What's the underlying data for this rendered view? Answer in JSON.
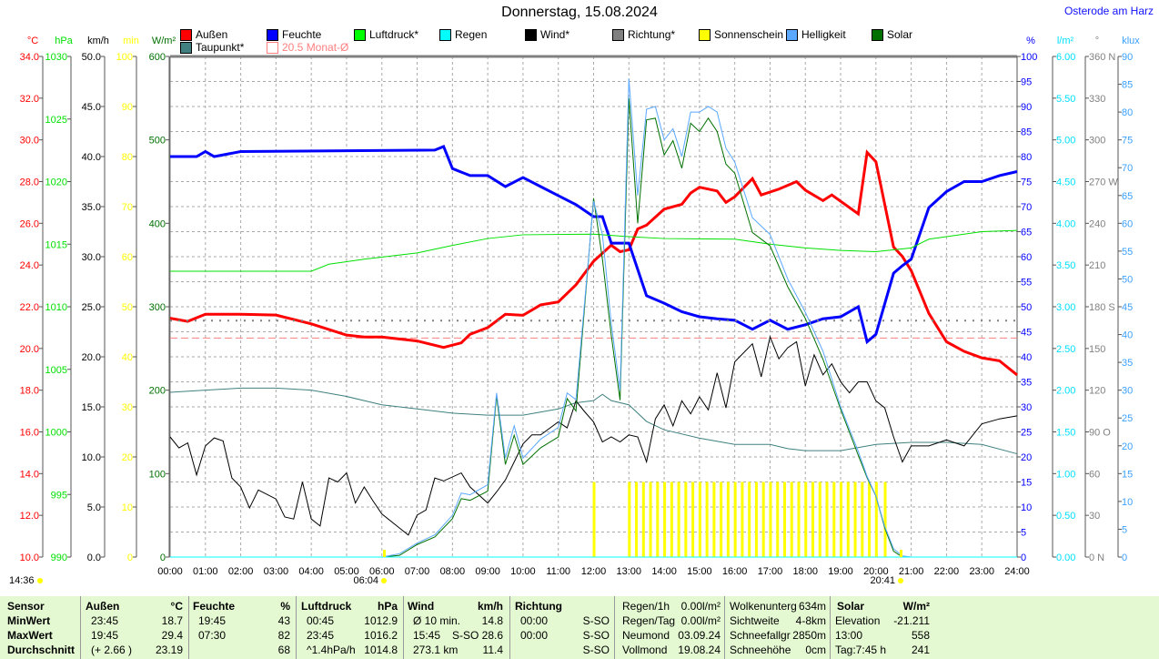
{
  "title": "Donnerstag, 15.08.2024",
  "location": "Osterode am Harz",
  "legend": [
    {
      "label": "Außen",
      "color": "#ff0000"
    },
    {
      "label": "Feuchte",
      "color": "#0000ff"
    },
    {
      "label": "Luftdruck*",
      "color": "#00ff00"
    },
    {
      "label": "Regen",
      "color": "#00ffff"
    },
    {
      "label": "Wind*",
      "color": "#000000"
    },
    {
      "label": "Richtung*",
      "color": "#808080"
    },
    {
      "label": "Sonnenschein",
      "color": "#ffff00"
    },
    {
      "label": "Helligkeit",
      "color": "#5aa8ff"
    },
    {
      "label": "Solar",
      "color": "#007000"
    },
    {
      "label": "Taupunkt*",
      "color": "#408080"
    },
    {
      "label": "20.5 Monat-Ø",
      "color": "#ff8080"
    }
  ],
  "time_marks": {
    "now": "14:36",
    "sunrise": "06:04",
    "sunset": "20:41"
  },
  "chart_data": {
    "type": "line",
    "title": "Donnerstag, 15.08.2024",
    "x_ticks": [
      "00:00",
      "01:00",
      "02:00",
      "03:00",
      "04:00",
      "05:00",
      "06:00",
      "07:00",
      "08:00",
      "09:00",
      "10:00",
      "11:00",
      "12:00",
      "13:00",
      "14:00",
      "15:00",
      "16:00",
      "17:00",
      "18:00",
      "19:00",
      "20:00",
      "21:00",
      "22:00",
      "23:00",
      "24:00"
    ],
    "xlim": [
      0,
      24
    ],
    "axes": {
      "temp": {
        "unit": "°C",
        "range": [
          10,
          34
        ],
        "step": 2,
        "color": "#ff0000"
      },
      "press": {
        "unit": "hPa",
        "range": [
          990,
          1030
        ],
        "step": 5,
        "color": "#00e000"
      },
      "wind": {
        "unit": "km/h",
        "range": [
          0,
          50
        ],
        "step": 5,
        "color": "#000000"
      },
      "sun": {
        "unit": "min",
        "range": [
          0,
          100
        ],
        "step": 10,
        "color": "#ffff00"
      },
      "solar": {
        "unit": "W/m²",
        "range": [
          0,
          600
        ],
        "step": 100,
        "color": "#007000"
      },
      "hum": {
        "unit": "%",
        "range": [
          0,
          100
        ],
        "step": 5,
        "color": "#0000ff"
      },
      "rain": {
        "unit": "l/m²",
        "range": [
          0,
          6
        ],
        "step": 0.5,
        "color": "#00e0ff"
      },
      "dir": {
        "unit": "°",
        "range": [
          0,
          360
        ],
        "step": 30,
        "color": "#808080",
        "compass": {
          "0": "N",
          "90": "O",
          "180": "S",
          "270": "W",
          "360": "N"
        }
      },
      "lux": {
        "unit": "klux",
        "range": [
          0,
          90
        ],
        "step": 5,
        "color": "#3aa0ff"
      }
    },
    "monthly_avg_temp": 20.5,
    "series": [
      {
        "name": "Außen",
        "axis": "temp",
        "color": "#ff0000",
        "width": 3,
        "x": [
          0,
          0.5,
          1,
          2,
          3,
          4,
          5,
          5.5,
          6,
          7,
          7.75,
          8.25,
          8.5,
          9,
          9.5,
          10,
          10.5,
          11,
          11.5,
          12,
          12.5,
          12.75,
          13,
          13.25,
          13.5,
          14,
          14.5,
          14.75,
          15,
          15.5,
          15.75,
          16,
          16.5,
          16.75,
          17.25,
          17.75,
          18,
          18.5,
          18.75,
          19.5,
          19.75,
          20,
          20.5,
          20.75,
          21,
          21.5,
          22,
          22.5,
          23,
          23.5,
          24
        ],
        "y": [
          21.45,
          21.3,
          21.64,
          21.64,
          21.6,
          21.18,
          20.64,
          20.55,
          20.55,
          20.36,
          20.05,
          20.27,
          20.68,
          21.0,
          21.64,
          21.59,
          22.09,
          22.23,
          23.05,
          24.18,
          24.95,
          24.64,
          24.73,
          25.73,
          25.91,
          26.68,
          26.91,
          27.45,
          27.73,
          27.55,
          27.0,
          27.27,
          28.14,
          27.36,
          27.64,
          28.0,
          27.59,
          27.09,
          27.36,
          26.45,
          29.4,
          28.95,
          24.86,
          24.41,
          23.73,
          21.68,
          20.32,
          19.86,
          19.55,
          19.41,
          18.73
        ]
      },
      {
        "name": "Feuchte",
        "axis": "hum",
        "color": "#0000ff",
        "width": 3,
        "x": [
          0,
          0.75,
          1,
          1.25,
          2,
          7.5,
          7.75,
          8,
          8.5,
          9,
          9.5,
          10,
          10.5,
          11,
          11.5,
          12,
          12.25,
          12.5,
          13,
          13.5,
          14,
          14.5,
          15,
          15.5,
          16,
          16.5,
          17,
          17.5,
          18,
          18.5,
          19,
          19.5,
          19.75,
          20,
          20.5,
          20.75,
          21,
          21.5,
          22,
          22.5,
          23,
          23.5,
          24
        ],
        "y": [
          80,
          80,
          81,
          80,
          81,
          81.3,
          82,
          77.6,
          76.2,
          76.2,
          74,
          75.8,
          74,
          72.2,
          70.4,
          68,
          68,
          62.7,
          62.7,
          52.2,
          50.7,
          49,
          48,
          47.6,
          47.3,
          45.5,
          47.3,
          45.5,
          46.4,
          47.6,
          48,
          50,
          43,
          44.5,
          56.7,
          58.2,
          59.5,
          69.8,
          73,
          75,
          75,
          76.2,
          77
        ]
      },
      {
        "name": "Luftdruck*",
        "axis": "press",
        "color": "#00e000",
        "width": 1,
        "x": [
          0,
          1,
          2,
          3,
          4,
          4.5,
          5.5,
          7,
          8,
          9,
          10,
          12,
          13,
          14,
          16,
          17,
          18,
          19,
          20,
          21,
          21.5,
          22,
          23,
          24
        ],
        "y": [
          1012.84,
          1012.84,
          1012.84,
          1012.84,
          1012.84,
          1013.4,
          1013.8,
          1014.3,
          1014.9,
          1015.45,
          1015.75,
          1015.8,
          1015.6,
          1015.45,
          1015.4,
          1015.0,
          1014.7,
          1014.5,
          1014.4,
          1014.7,
          1015.4,
          1015.6,
          1016.0,
          1016.1
        ]
      },
      {
        "name": "Taupunkt*",
        "axis": "temp",
        "color": "#408080",
        "width": 1,
        "x": [
          0,
          1,
          2,
          3,
          4,
          5,
          6,
          7,
          8,
          9,
          10,
          11,
          11.5,
          12,
          12.25,
          12.5,
          13,
          13.5,
          14,
          15,
          16,
          17,
          17.5,
          18,
          19,
          20,
          21,
          22,
          23,
          24
        ],
        "y": [
          17.9,
          18.0,
          18.1,
          18.1,
          18.0,
          17.7,
          17.3,
          17.1,
          16.9,
          16.8,
          16.8,
          17.1,
          17.4,
          17.5,
          17.8,
          17.5,
          17.3,
          16.5,
          16.1,
          15.7,
          15.4,
          15.4,
          15.2,
          15.1,
          15.1,
          15.4,
          15.5,
          15.5,
          15.4,
          14.95
        ]
      },
      {
        "name": "Wind*",
        "axis": "wind",
        "color": "#000000",
        "width": 1,
        "x": [
          0,
          0.25,
          0.5,
          0.75,
          1,
          1.25,
          1.5,
          1.75,
          2,
          2.25,
          2.5,
          3,
          3.25,
          3.5,
          3.75,
          4,
          4.25,
          4.5,
          4.75,
          5,
          5.25,
          5.5,
          5.75,
          6,
          6.5,
          6.75,
          7,
          7.25,
          7.5,
          7.75,
          8.25,
          8.5,
          9,
          9.25,
          9.5,
          10,
          10.25,
          10.5,
          11,
          11.25,
          11.5,
          11.75,
          12,
          12.25,
          12.5,
          12.75,
          13,
          13.25,
          13.5,
          13.75,
          14,
          14.25,
          14.5,
          14.75,
          15,
          15.25,
          15.5,
          15.75,
          16,
          16.5,
          16.75,
          17,
          17.25,
          17.5,
          17.75,
          18,
          18.25,
          18.5,
          18.75,
          19,
          19.25,
          19.5,
          19.75,
          20,
          20.25,
          20.5,
          20.75,
          21,
          21.5,
          22,
          22.5,
          23,
          23.5,
          24
        ],
        "y": [
          12.0,
          10.9,
          11.4,
          8.2,
          11.1,
          11.9,
          11.6,
          7.9,
          7.0,
          4.9,
          6.7,
          5.8,
          4.0,
          3.8,
          7.5,
          3.8,
          3.1,
          7.9,
          7.5,
          8.4,
          5.4,
          7.0,
          5.6,
          4.3,
          2.9,
          2.2,
          4.2,
          4.7,
          7.9,
          7.6,
          8.4,
          7.0,
          5.4,
          6.5,
          7.7,
          11.3,
          12.2,
          12.2,
          13.5,
          12.9,
          15.6,
          14.5,
          13.5,
          11.5,
          12.0,
          11.5,
          12.2,
          12.0,
          9.5,
          13.8,
          15.2,
          13.1,
          15.6,
          14.3,
          16.0,
          14.7,
          18.4,
          14.9,
          19.5,
          21.3,
          18.0,
          22.0,
          19.8,
          20.9,
          21.5,
          17.1,
          20.2,
          18.2,
          19.3,
          17.5,
          16.4,
          17.5,
          17.5,
          15.6,
          14.9,
          12.0,
          9.5,
          11.1,
          11.1,
          11.7,
          11.1,
          13.3,
          13.8,
          14.1
        ]
      },
      {
        "name": "Richtung*",
        "axis": "dir",
        "color": "#808080",
        "width": 1,
        "dotted": true,
        "x": [
          0,
          24
        ],
        "y": [
          170,
          170
        ]
      },
      {
        "name": "Solar",
        "axis": "solar",
        "color": "#007000",
        "width": 1,
        "x": [
          0,
          6,
          6.5,
          7,
          7.5,
          8,
          8.25,
          8.5,
          9,
          9.25,
          9.5,
          9.75,
          10,
          10.5,
          11,
          11.25,
          11.5,
          12,
          12.25,
          12.5,
          12.75,
          13,
          13.25,
          13.5,
          13.75,
          14,
          14.25,
          14.5,
          14.75,
          15,
          15.25,
          15.5,
          15.75,
          16,
          16.5,
          17,
          17.5,
          18,
          18.5,
          19,
          19.5,
          19.75,
          20,
          20.25,
          20.5,
          20.75,
          24
        ],
        "y": [
          0,
          0,
          2,
          15,
          24,
          46,
          70,
          68,
          79,
          193,
          111,
          146,
          111,
          131,
          144,
          190,
          175,
          430,
          357,
          266,
          188,
          550,
          400,
          524,
          526,
          482,
          499,
          466,
          520,
          510,
          526,
          510,
          471,
          460,
          389,
          373,
          324,
          286,
          237,
          177,
          122,
          95,
          73,
          35,
          7,
          0,
          0
        ]
      },
      {
        "name": "Helligkeit",
        "axis": "lux",
        "color": "#5aa8ff",
        "width": 1,
        "x": [
          0,
          6,
          6.5,
          7,
          7.5,
          8,
          8.25,
          8.5,
          9,
          9.25,
          9.5,
          9.75,
          10,
          10.5,
          11,
          11.25,
          11.5,
          12,
          12.25,
          12.5,
          12.75,
          13,
          13.25,
          13.5,
          13.75,
          14,
          14.25,
          14.5,
          14.75,
          15,
          15.25,
          15.5,
          15.75,
          16,
          16.5,
          17,
          17.5,
          18,
          18.5,
          19,
          19.5,
          19.75,
          20,
          20.25,
          20.5,
          20.75,
          21,
          24
        ],
        "y": [
          0,
          0,
          0.6,
          2.5,
          4,
          7.5,
          11.5,
          11.2,
          13,
          29.5,
          17.8,
          23.6,
          17.8,
          21.2,
          23.3,
          29.5,
          28.3,
          64,
          58,
          42,
          30,
          86,
          65,
          80.5,
          81,
          75,
          77,
          72,
          80,
          80,
          81,
          80,
          73.5,
          71,
          61,
          58,
          50,
          44,
          37,
          27,
          19,
          14.5,
          11,
          5.5,
          1.5,
          0.2,
          0,
          0
        ]
      },
      {
        "name": "Regen",
        "axis": "rain",
        "color": "#00ffff",
        "width": 1,
        "x": [
          0,
          24
        ],
        "y": [
          0,
          0
        ]
      }
    ],
    "sunshine_minutes": {
      "axis": "sun",
      "color": "#ffff00",
      "x": [
        12.0,
        13.0,
        13.2,
        13.4,
        13.6,
        13.8,
        14.0,
        14.2,
        14.4,
        14.6,
        14.8,
        15.0,
        15.2,
        15.4,
        15.6,
        15.8,
        16.0,
        16.2,
        16.4,
        16.6,
        16.8,
        17.0,
        17.2,
        17.4,
        17.6,
        17.8,
        18.0,
        18.2,
        18.4,
        18.6,
        18.8,
        19.0,
        19.2,
        19.4,
        19.6,
        19.8,
        20.0,
        20.25
      ],
      "y": [
        15,
        15,
        15,
        15,
        15,
        15,
        15,
        15,
        15,
        15,
        15,
        15,
        15,
        15,
        15,
        15,
        15,
        15,
        15,
        15,
        15,
        15,
        15,
        15,
        15,
        15,
        15,
        15,
        15,
        15,
        15,
        15,
        15,
        15,
        15,
        15,
        15,
        15
      ]
    }
  },
  "table": {
    "headers": [
      "Sensor",
      "Außen",
      "°C",
      "Feuchte",
      "%",
      "Luftdruck",
      "hPa",
      "Wind",
      "km/h",
      "Richtung"
    ],
    "rows": [
      {
        "label": "MinWert",
        "aussen_t": "23:45",
        "aussen_v": "18.7",
        "feuchte_t": "19:45",
        "feuchte_v": "43",
        "druck_t": "00:45",
        "druck_v": "1012.9",
        "wind_t": "Ø 10 min.",
        "wind_v": "14.8",
        "richt_t": "00:00",
        "richt_v": "S-SO"
      },
      {
        "label": "MaxWert",
        "aussen_t": "19:45",
        "aussen_v": "29.4",
        "feuchte_t": "07:30",
        "feuchte_v": "82",
        "druck_t": "23:45",
        "druck_v": "1016.2",
        "wind_t": "15:45",
        "wind_v": "S-SO 28.6",
        "richt_t": "00:00",
        "richt_v": "S-SO"
      },
      {
        "label": "Durchschnitt",
        "aussen_t": "(+ 2.66 )",
        "aussen_v": "23.19",
        "feuchte_t": "",
        "feuchte_v": "68",
        "druck_t": "^1.4hPa/h",
        "druck_v": "1014.8",
        "wind_t": "273.1 km",
        "wind_v": "11.4",
        "richt_t": "",
        "richt_v": "S-SO"
      }
    ],
    "extra1": [
      [
        "Regen/1h",
        "0.00l/m²"
      ],
      [
        "Regen/Tag",
        "0.00l/m²"
      ],
      [
        "Neumond",
        "03.09.24"
      ],
      [
        "Vollmond",
        "19.08.24"
      ]
    ],
    "extra2": [
      [
        "Wolkenunterg",
        "634m"
      ],
      [
        "Sichtweite",
        "4-8km"
      ],
      [
        "Schneefallgr",
        "2850m"
      ],
      [
        "Schneehöhe",
        "0cm"
      ]
    ],
    "solar": {
      "header": "Solar",
      "unit": "W/m²",
      "rows": [
        [
          "Elevation",
          "-21.211"
        ],
        [
          "13:00",
          "558"
        ],
        [
          "Tag:7:45 h",
          "241"
        ]
      ]
    }
  }
}
